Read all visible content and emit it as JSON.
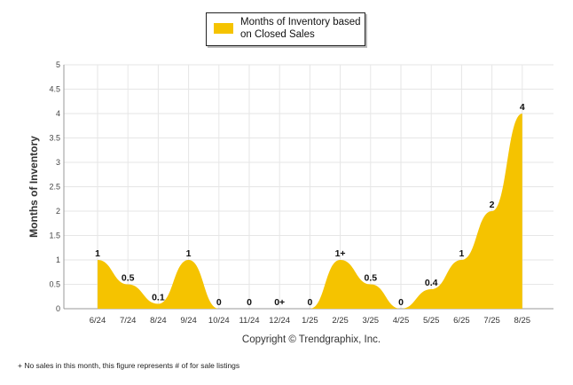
{
  "chart_data": {
    "type": "area",
    "categories": [
      "6/24",
      "7/24",
      "8/24",
      "9/24",
      "10/24",
      "11/24",
      "12/24",
      "1/25",
      "2/25",
      "3/25",
      "4/25",
      "5/25",
      "6/25",
      "7/25",
      "8/25"
    ],
    "series": [
      {
        "name": "Months of Inventory based on Closed Sales",
        "values": [
          1,
          0.5,
          0.1,
          1,
          0,
          0,
          0,
          0,
          1,
          0.5,
          0,
          0.4,
          1,
          2,
          4
        ],
        "labels": [
          "1",
          "0.5",
          "0.1",
          "1",
          "0",
          "0",
          "0+",
          "0",
          "1+",
          "0.5",
          "0",
          "0.4",
          "1",
          "2",
          "4"
        ]
      }
    ],
    "ylabel": "Months of Inventory",
    "xlabel": "",
    "ylim": [
      0,
      5
    ],
    "yticks": [
      "0",
      "0.5",
      "1",
      "1.5",
      "2",
      "2.5",
      "3",
      "3.5",
      "4",
      "4.5",
      "5"
    ],
    "grid": true,
    "legend_position": "top-center",
    "colors": {
      "fill": "#f5c300",
      "grid": "#e6e6e6",
      "axis": "#999999"
    }
  },
  "copyright": "Copyright © Trendgraphix, Inc.",
  "footnote": "+ No sales in this month, this figure represents # of for sale listings"
}
